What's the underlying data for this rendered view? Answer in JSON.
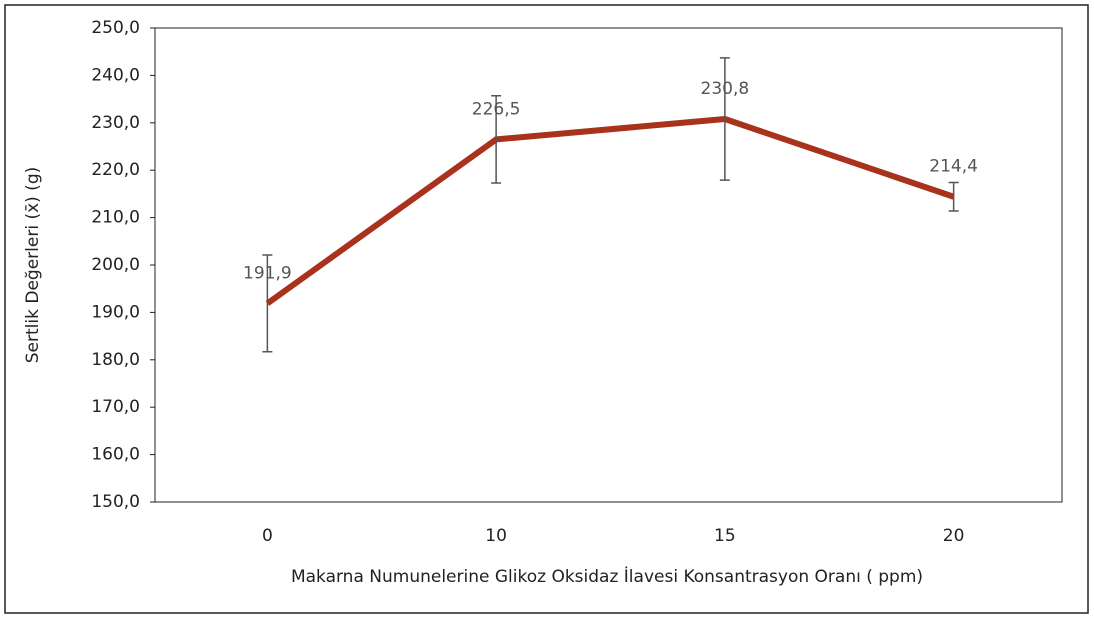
{
  "chart_data": {
    "type": "line",
    "y_label": "Sertlik Değerleri (x̄) (g)",
    "x_label": "Makarna Numunelerine Glikoz Oksidaz İlavesi Konsantrasyon Oranı ( ppm)",
    "categories": [
      "0",
      "10",
      "15",
      "20"
    ],
    "series": [
      {
        "name": "Sertlik",
        "color": "#a8321b",
        "values": [
          191.9,
          226.5,
          230.8,
          214.4
        ],
        "value_labels": [
          "191,9",
          "226,5",
          "230,8",
          "214,4"
        ],
        "errors": [
          10.2,
          9.2,
          12.9,
          3.0
        ]
      }
    ],
    "ylim": [
      150,
      250
    ],
    "yticks": [
      {
        "value": 150,
        "label": "150,0"
      },
      {
        "value": 160,
        "label": "160,0"
      },
      {
        "value": 170,
        "label": "170,0"
      },
      {
        "value": 180,
        "label": "180,0"
      },
      {
        "value": 190,
        "label": "190,0"
      },
      {
        "value": 200,
        "label": "200,0"
      },
      {
        "value": 210,
        "label": "210,0"
      },
      {
        "value": 220,
        "label": "220,0"
      },
      {
        "value": 230,
        "label": "230,0"
      },
      {
        "value": 240,
        "label": "240,0"
      },
      {
        "value": 250,
        "label": "250,0"
      }
    ],
    "grid": false
  }
}
